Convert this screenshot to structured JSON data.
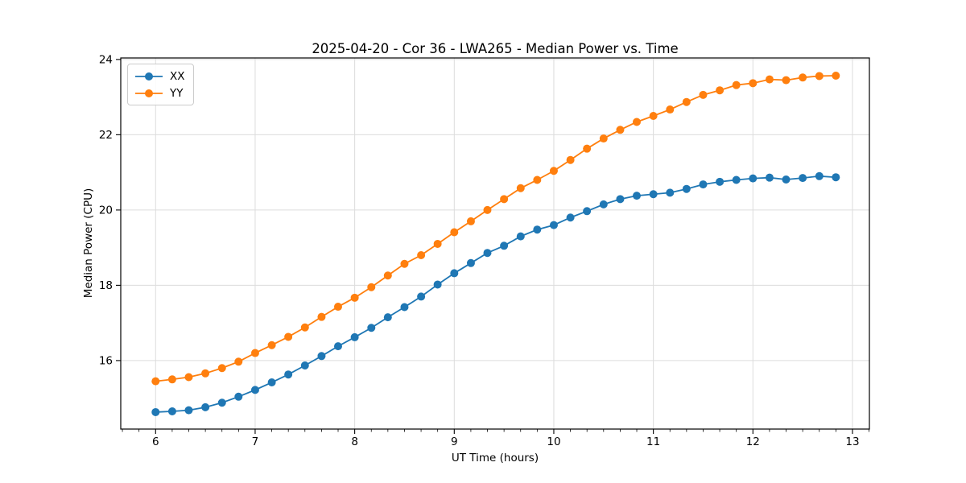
{
  "chart_data": {
    "type": "line",
    "title": "2025-04-20 - Cor 36 - LWA265 - Median Power vs. Time",
    "xlabel": "UT Time (hours)",
    "ylabel": "Median Power (CPU)",
    "xlim": [
      5.65,
      13.17
    ],
    "ylim": [
      14.18,
      24.04
    ],
    "x_ticks": [
      6,
      7,
      8,
      9,
      10,
      11,
      12,
      13
    ],
    "y_ticks": [
      16,
      18,
      20,
      22,
      24
    ],
    "x_minor_tick_step": 0.1667,
    "grid": true,
    "grid_color": "#dcdcdc",
    "legend_position": "upper-left",
    "marker": "circle",
    "x": [
      6.0,
      6.167,
      6.333,
      6.5,
      6.667,
      6.833,
      7.0,
      7.167,
      7.333,
      7.5,
      7.667,
      7.833,
      8.0,
      8.167,
      8.333,
      8.5,
      8.667,
      8.833,
      9.0,
      9.167,
      9.333,
      9.5,
      9.667,
      9.833,
      10.0,
      10.167,
      10.333,
      10.5,
      10.667,
      10.833,
      11.0,
      11.167,
      11.333,
      11.5,
      11.667,
      11.833,
      12.0,
      12.167,
      12.333,
      12.5,
      12.667,
      12.833
    ],
    "series": [
      {
        "name": "XX",
        "color": "#1f77b4",
        "values": [
          14.63,
          14.65,
          14.68,
          14.76,
          14.88,
          15.04,
          15.22,
          15.42,
          15.63,
          15.87,
          16.12,
          16.38,
          16.62,
          16.87,
          17.15,
          17.42,
          17.7,
          18.02,
          18.32,
          18.59,
          18.86,
          19.05,
          19.3,
          19.48,
          19.6,
          19.8,
          19.97,
          20.15,
          20.29,
          20.38,
          20.42,
          20.46,
          20.56,
          20.68,
          20.75,
          20.8,
          20.84,
          20.86,
          20.81,
          20.85,
          20.9,
          20.87
        ]
      },
      {
        "name": "YY",
        "color": "#ff7f0e",
        "values": [
          15.45,
          15.5,
          15.56,
          15.66,
          15.8,
          15.97,
          16.2,
          16.41,
          16.63,
          16.88,
          17.16,
          17.43,
          17.67,
          17.95,
          18.26,
          18.57,
          18.8,
          19.1,
          19.41,
          19.7,
          20.0,
          20.29,
          20.58,
          20.8,
          21.04,
          21.33,
          21.63,
          21.9,
          22.13,
          22.34,
          22.5,
          22.67,
          22.87,
          23.06,
          23.18,
          23.32,
          23.37,
          23.47,
          23.45,
          23.52,
          23.56,
          23.57
        ]
      }
    ]
  }
}
